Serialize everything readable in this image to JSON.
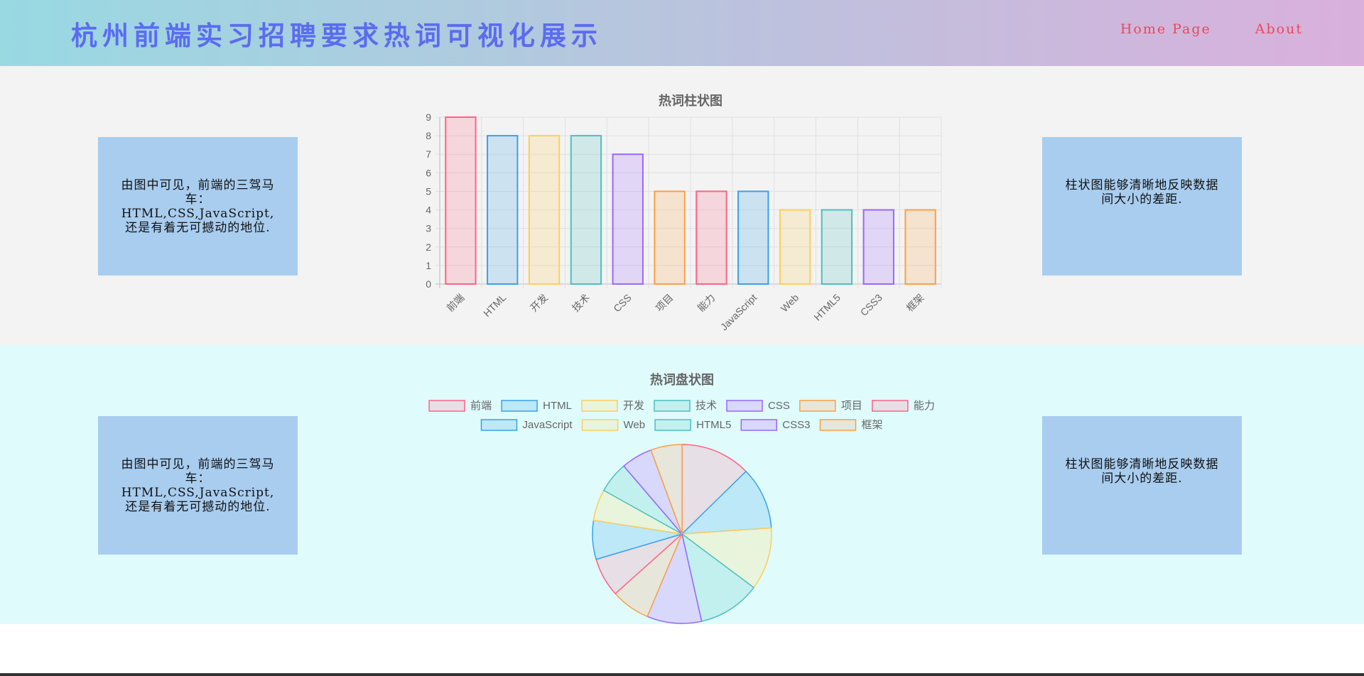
{
  "header": {
    "title": "杭州前端实习招聘要求热词可视化展示",
    "nav": [
      "Home Page",
      "About"
    ]
  },
  "bar_section": {
    "left_note": "由图中可见，前端的三驾马车：HTML,CSS,JavaScript,还是有着无可撼动的地位.",
    "right_note": "柱状图能够清晰地反映数据间大小的差距."
  },
  "pie_section": {
    "left_note": "由图中可见，前端的三驾马车：HTML,CSS,JavaScript,还是有着无可撼动的地位.",
    "right_note": "柱状图能够清晰地反映数据间大小的差距."
  },
  "colors": {
    "border": [
      "#ff6384",
      "#36a2eb",
      "#ffce56",
      "#4bc0c0",
      "#9966ff",
      "#ff9f40"
    ],
    "bar_fill": [
      "rgba(255,99,132,0.2)",
      "rgba(54,162,235,0.2)",
      "rgba(255,206,86,0.2)",
      "rgba(75,192,192,0.2)",
      "rgba(153,102,255,0.2)",
      "rgba(255,159,64,0.2)"
    ],
    "pie_fill": [
      "#e6dfe6",
      "#bde8f8",
      "#e8f4dc",
      "#c2f0ee",
      "#d7d8fb",
      "#e6e7da"
    ]
  },
  "chart_data": [
    {
      "type": "bar",
      "title": "热词柱状图",
      "categories": [
        "前端",
        "HTML",
        "开发",
        "技术",
        "CSS",
        "项目",
        "能力",
        "JavaScript",
        "Web",
        "HTML5",
        "CSS3",
        "框架"
      ],
      "values": [
        9,
        8,
        8,
        8,
        7,
        5,
        5,
        5,
        4,
        4,
        4,
        4
      ],
      "ylim": [
        0,
        9
      ],
      "yticks": [
        "0",
        "1",
        "2",
        "3",
        "4",
        "5",
        "6",
        "7",
        "8",
        "9"
      ],
      "grid": true
    },
    {
      "type": "pie",
      "title": "热词盘状图",
      "categories": [
        "前端",
        "HTML",
        "开发",
        "技术",
        "CSS",
        "项目",
        "能力",
        "JavaScript",
        "Web",
        "HTML5",
        "CSS3",
        "框架"
      ],
      "values": [
        9,
        8,
        8,
        8,
        7,
        5,
        5,
        5,
        4,
        4,
        4,
        4
      ],
      "legend": "top"
    }
  ]
}
